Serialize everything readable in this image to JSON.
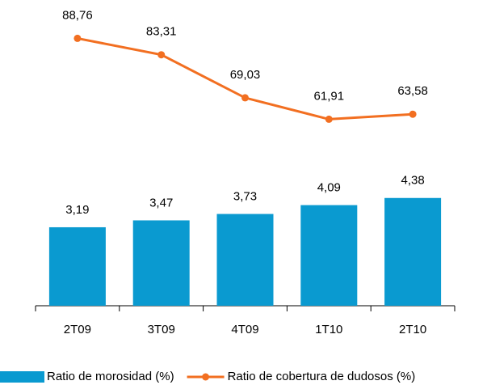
{
  "chart_data": {
    "type": "bar-line",
    "categories": [
      "2T09",
      "3T09",
      "4T09",
      "1T10",
      "2T10"
    ],
    "series": [
      {
        "name": "Ratio de morosidad (%)",
        "type": "bar",
        "color": "#0a9ad0",
        "values": [
          3.19,
          3.47,
          3.73,
          4.09,
          4.38
        ],
        "value_labels": [
          "3,19",
          "3,47",
          "3,73",
          "4,09",
          "4,38"
        ]
      },
      {
        "name": "Ratio de cobertura de dudosos (%)",
        "type": "line",
        "color": "#f26f21",
        "axis": "y2",
        "values": [
          88.76,
          83.31,
          69.03,
          61.91,
          63.58
        ],
        "value_labels": [
          "88,76",
          "83,31",
          "69,03",
          "61,91",
          "63,58"
        ]
      }
    ],
    "ylim": [
      0,
      12
    ],
    "y2lim": [
      0,
      98
    ]
  }
}
